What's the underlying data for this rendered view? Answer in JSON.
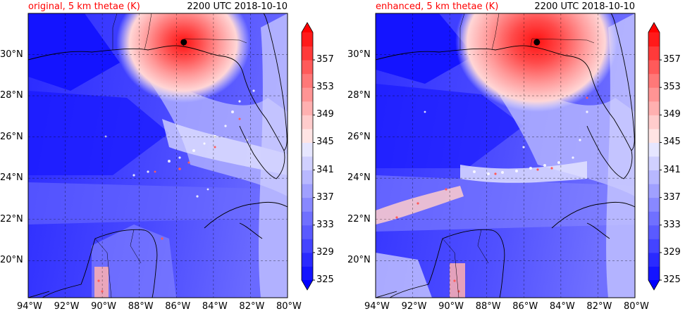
{
  "panels": [
    {
      "title_left": "original, 5 km thetae (K)",
      "title_right": "2200 UTC 2018-10-10"
    },
    {
      "title_left": "enhanced, 5 km thetae (K)",
      "title_right": "2200 UTC 2018-10-10"
    }
  ],
  "axes": {
    "lat_labels": [
      "30°N",
      "28°N",
      "26°N",
      "24°N",
      "22°N",
      "20°N"
    ],
    "lat_values": [
      30,
      28,
      26,
      24,
      22,
      20
    ],
    "lon_labels": [
      "94°W",
      "92°W",
      "90°W",
      "88°W",
      "86°W",
      "84°W",
      "82°W",
      "80°W"
    ],
    "lon_values": [
      -94,
      -92,
      -90,
      -88,
      -86,
      -84,
      -82,
      -80
    ],
    "lat_range": [
      18.2,
      32.0
    ],
    "lon_range": [
      -94,
      -80
    ]
  },
  "colorbar": {
    "tick_labels": [
      "357",
      "353",
      "349",
      "345",
      "341",
      "337",
      "333",
      "329",
      "325"
    ],
    "levels": [
      325,
      327,
      329,
      331,
      333,
      335,
      337,
      339,
      341,
      343,
      345,
      347,
      349,
      351,
      353,
      355,
      357,
      359
    ],
    "colors": [
      "#1414ff",
      "#2a2aff",
      "#4444ff",
      "#5a5aff",
      "#7070ff",
      "#8888ff",
      "#a0a0ff",
      "#b8b8ff",
      "#d0d0ff",
      "#e6e6ff",
      "#ffe4e4",
      "#ffcccc",
      "#ffb0b0",
      "#ff9494",
      "#ff7878",
      "#ff5a5a",
      "#ff3a3a",
      "#ff1a1a"
    ],
    "extend": "both"
  },
  "hurricane_center": {
    "lat": 30.6,
    "lon": -85.6
  }
}
